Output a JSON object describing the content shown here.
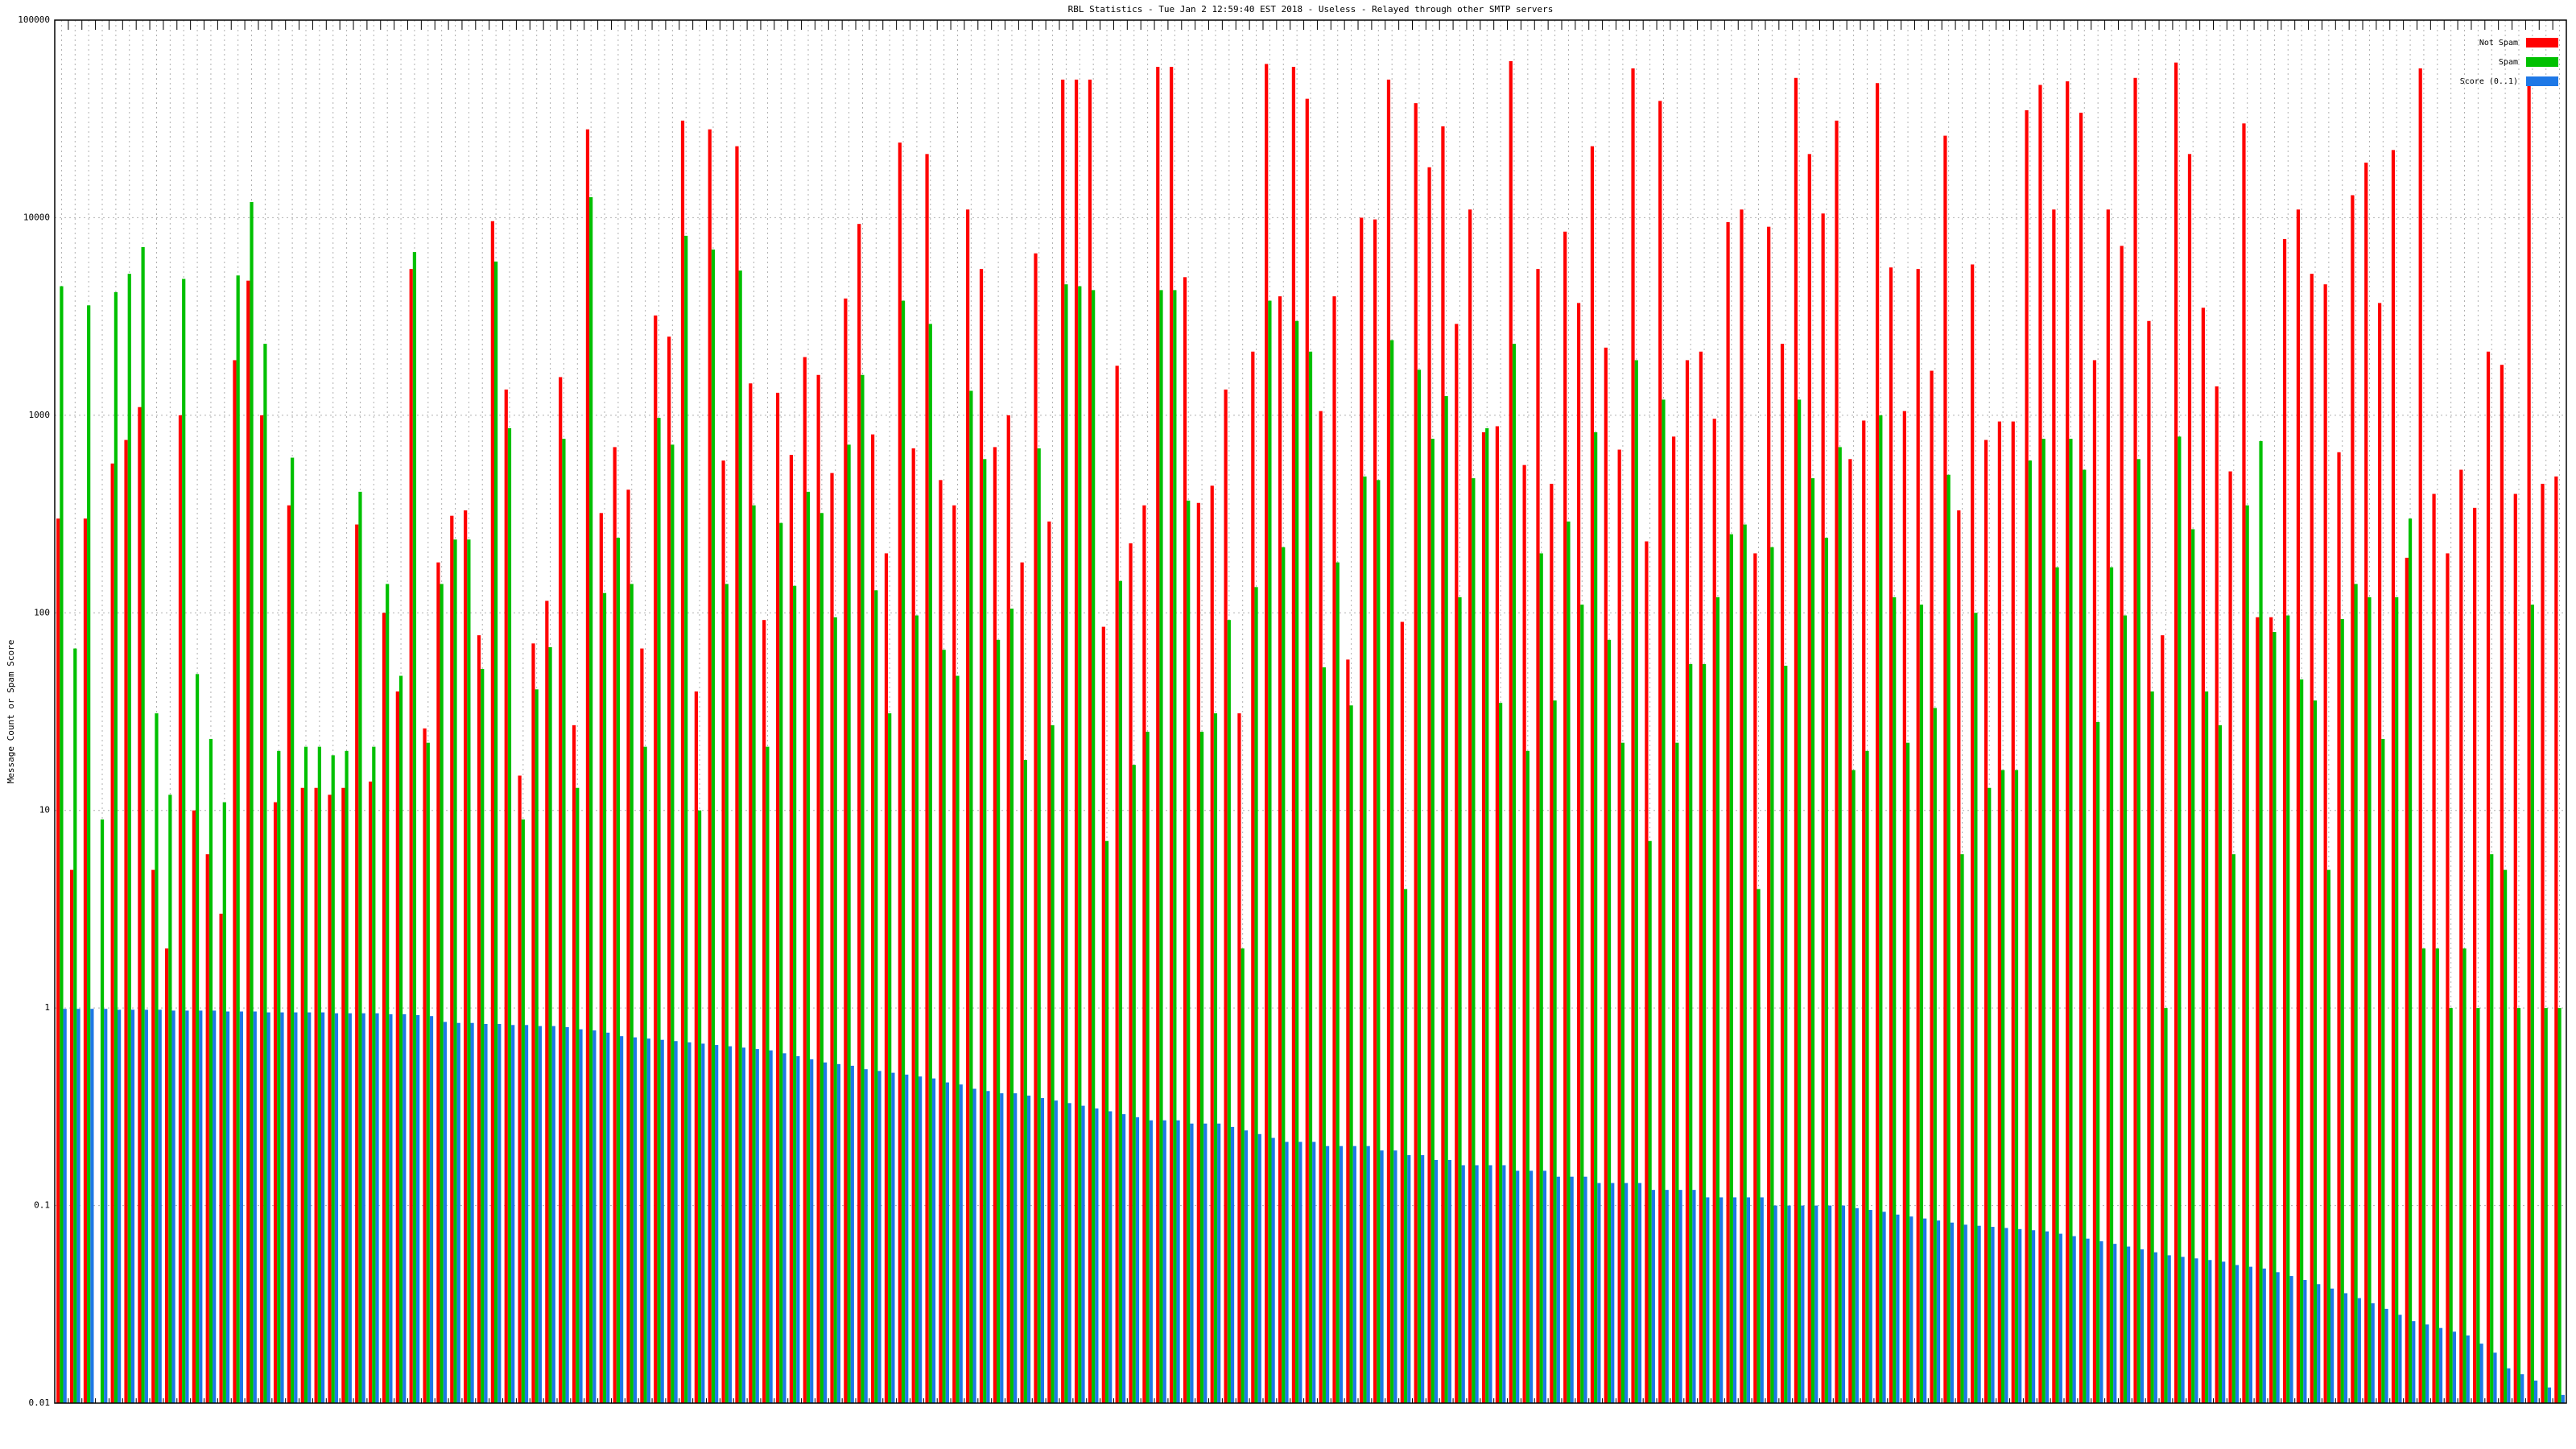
{
  "chart_data": {
    "type": "bar",
    "title": "RBL Statistics - Tue Jan  2 12:59:40 EST 2018 - Useless - Relayed through other SMTP servers",
    "y_label": "Message Count or Spam Score",
    "log_y": true,
    "grid": true,
    "legend": "top-right",
    "ylim": [
      0.01,
      100000
    ],
    "yticks": [
      0.01,
      0.1,
      1,
      10,
      100,
      1000,
      10000,
      100000
    ],
    "categories": [
      null,
      null,
      null,
      null,
      null,
      null,
      null,
      null,
      null,
      null,
      null,
      null,
      null,
      null,
      null,
      null,
      null,
      null,
      null,
      null,
      null,
      null,
      null,
      null,
      null,
      null,
      null,
      null,
      null,
      null,
      null,
      null,
      null,
      null,
      null,
      null,
      null,
      null,
      null,
      null,
      null,
      null,
      null,
      null,
      null,
      null,
      null,
      null,
      null,
      null,
      null,
      null,
      null,
      null,
      null,
      null,
      null,
      null,
      null,
      null,
      null,
      null,
      null,
      null,
      null,
      null,
      null,
      null,
      null,
      null,
      null,
      null,
      null,
      null,
      null,
      null,
      null,
      null,
      null,
      null,
      null,
      null,
      null,
      null,
      null,
      null,
      null,
      null,
      null,
      null,
      null,
      null,
      null,
      null,
      null,
      null,
      null,
      null,
      null,
      null,
      null,
      null,
      null,
      null,
      null,
      null,
      null,
      null,
      null,
      null,
      null,
      null,
      null,
      null,
      null,
      null,
      null,
      null,
      null,
      null,
      null,
      null,
      null,
      null,
      null,
      null,
      null,
      null,
      null,
      null,
      null,
      null,
      null,
      null,
      null,
      null,
      null,
      null,
      null,
      null,
      null,
      null,
      null,
      null,
      null,
      null,
      null,
      null,
      null,
      null,
      null,
      null,
      null,
      null,
      null,
      null,
      null,
      null,
      null,
      null,
      null,
      null,
      null,
      null,
      null,
      null,
      null,
      null,
      null,
      null,
      null,
      null,
      null,
      null,
      null,
      null,
      null,
      null,
      null,
      null,
      null,
      null,
      null,
      null,
      null
    ],
    "series": [
      {
        "name": "Not Spam",
        "color": "#ff0000",
        "values": [
          300,
          5,
          300,
          null,
          570,
          750,
          1100,
          5,
          2,
          1000,
          10,
          6,
          3,
          1900,
          4800,
          1000,
          11,
          350,
          13,
          13,
          12,
          13,
          280,
          14,
          100,
          40,
          5500,
          26,
          180,
          310,
          330,
          77,
          9600,
          1350,
          15,
          70,
          115,
          1560,
          27,
          28000,
          320,
          690,
          420,
          66,
          3200,
          2500,
          31000,
          40,
          28000,
          590,
          23000,
          1450,
          92,
          1300,
          630,
          1970,
          1600,
          510,
          3900,
          9300,
          800,
          200,
          24000,
          680,
          21000,
          470,
          350,
          11000,
          5500,
          690,
          1000,
          180,
          6600,
          290,
          50000,
          50000,
          50000,
          85,
          1780,
          225,
          350,
          58000,
          58000,
          5000,
          360,
          440,
          1350,
          31,
          2100,
          60000,
          4000,
          58000,
          40000,
          1050,
          4000,
          58,
          10000,
          9800,
          50000,
          90,
          38000,
          18000,
          29000,
          2900,
          11000,
          820,
          880,
          62000,
          560,
          5500,
          450,
          8500,
          3700,
          23000,
          2200,
          670,
          57000,
          230,
          39000,
          780,
          1900,
          2100,
          960,
          9500,
          11000,
          200,
          9000,
          2300,
          51000,
          21000,
          10500,
          31000,
          600,
          940,
          48000,
          5600,
          1050,
          5500,
          1680,
          26000,
          330,
          5800,
          750,
          930,
          930,
          35000,
          47000,
          11000,
          49000,
          34000,
          1900,
          11000,
          7200,
          51000,
          3000,
          77,
          61000,
          21000,
          3500,
          1400,
          520,
          30000,
          95,
          95,
          7800,
          11000,
          5200,
          4600,
          650,
          13000,
          19000,
          3700,
          22000,
          190,
          57000,
          400,
          200,
          530,
          340,
          2100,
          1800,
          400,
          48000,
          450,
          490
        ]
      },
      {
        "name": "Spam",
        "color": "#00c000",
        "values": [
          4500,
          66,
          3600,
          9,
          4200,
          5200,
          7100,
          31,
          12,
          4900,
          49,
          23,
          11,
          5100,
          12000,
          2300,
          20,
          610,
          21,
          21,
          19,
          20,
          410,
          21,
          140,
          48,
          6700,
          22,
          140,
          235,
          235,
          52,
          6000,
          860,
          9,
          41,
          67,
          760,
          13,
          12700,
          126,
          240,
          140,
          21,
          970,
          710,
          8100,
          10,
          6900,
          140,
          5400,
          350,
          21,
          285,
          137,
          410,
          320,
          95,
          710,
          1600,
          130,
          31,
          3800,
          97,
          2900,
          65,
          48,
          1330,
          600,
          73,
          105,
          18,
          680,
          27,
          4600,
          4500,
          4300,
          7,
          145,
          17,
          25,
          4300,
          4300,
          370,
          25,
          31,
          92,
          2,
          135,
          3800,
          215,
          3000,
          2100,
          53,
          180,
          34,
          490,
          470,
          2400,
          4,
          1700,
          760,
          1250,
          120,
          480,
          860,
          35,
          2300,
          20,
          200,
          36,
          290,
          110,
          820,
          73,
          22,
          1900,
          7,
          1200,
          22,
          55,
          55,
          120,
          250,
          280,
          4,
          215,
          54,
          1200,
          480,
          240,
          690,
          16,
          20,
          1000,
          120,
          22,
          110,
          33,
          500,
          6,
          100,
          13,
          16,
          16,
          590,
          760,
          170,
          760,
          530,
          28,
          170,
          97,
          600,
          40,
          1,
          780,
          265,
          40,
          27,
          6,
          350,
          740,
          80,
          97,
          46,
          36,
          5,
          93,
          140,
          120,
          23,
          120,
          300,
          2,
          2,
          1,
          2,
          1,
          6,
          5,
          1,
          110,
          1,
          1
        ]
      },
      {
        "name": "Score (0..1)",
        "color": "#1e78e6",
        "values": [
          0.99,
          0.99,
          0.99,
          0.99,
          0.98,
          0.98,
          0.98,
          0.98,
          0.97,
          0.97,
          0.97,
          0.97,
          0.96,
          0.96,
          0.96,
          0.95,
          0.95,
          0.95,
          0.95,
          0.95,
          0.94,
          0.94,
          0.94,
          0.94,
          0.93,
          0.93,
          0.92,
          0.91,
          0.85,
          0.84,
          0.84,
          0.83,
          0.83,
          0.82,
          0.82,
          0.81,
          0.81,
          0.8,
          0.78,
          0.77,
          0.75,
          0.72,
          0.71,
          0.7,
          0.69,
          0.68,
          0.67,
          0.66,
          0.65,
          0.64,
          0.63,
          0.62,
          0.61,
          0.59,
          0.57,
          0.55,
          0.53,
          0.52,
          0.51,
          0.49,
          0.48,
          0.47,
          0.46,
          0.45,
          0.44,
          0.42,
          0.41,
          0.39,
          0.38,
          0.37,
          0.37,
          0.36,
          0.35,
          0.34,
          0.33,
          0.32,
          0.31,
          0.3,
          0.29,
          0.28,
          0.27,
          0.27,
          0.27,
          0.26,
          0.26,
          0.26,
          0.25,
          0.24,
          0.23,
          0.22,
          0.21,
          0.21,
          0.21,
          0.2,
          0.2,
          0.2,
          0.2,
          0.19,
          0.19,
          0.18,
          0.18,
          0.17,
          0.17,
          0.16,
          0.16,
          0.16,
          0.16,
          0.15,
          0.15,
          0.15,
          0.14,
          0.14,
          0.14,
          0.13,
          0.13,
          0.13,
          0.13,
          0.12,
          0.12,
          0.12,
          0.12,
          0.11,
          0.11,
          0.11,
          0.11,
          0.11,
          0.1,
          0.1,
          0.1,
          0.1,
          0.1,
          0.1,
          0.097,
          0.095,
          0.093,
          0.09,
          0.088,
          0.086,
          0.084,
          0.082,
          0.08,
          0.079,
          0.078,
          0.077,
          0.076,
          0.075,
          0.074,
          0.072,
          0.07,
          0.068,
          0.066,
          0.064,
          0.062,
          0.06,
          0.058,
          0.056,
          0.055,
          0.054,
          0.053,
          0.052,
          0.05,
          0.049,
          0.048,
          0.046,
          0.044,
          0.042,
          0.04,
          0.038,
          0.036,
          0.034,
          0.032,
          0.03,
          0.028,
          0.026,
          0.025,
          0.024,
          0.023,
          0.022,
          0.02,
          0.018,
          0.015,
          0.014,
          0.013,
          0.012,
          0.011
        ]
      }
    ]
  }
}
